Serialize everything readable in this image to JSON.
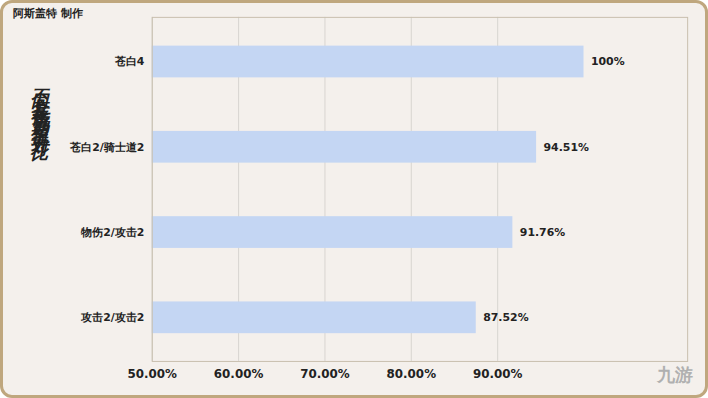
{
  "chart_data": {
    "type": "bar",
    "orientation": "horizontal",
    "title": "不同套装伤害期望提升对比",
    "subtitle": "阿斯盖特 制作",
    "caption": "九游",
    "categories": [
      "苍白4",
      "苍白2/骑士道2",
      "物伤2/攻击2",
      "攻击2/攻击2"
    ],
    "values": [
      100,
      94.51,
      91.76,
      87.52
    ],
    "value_labels": [
      "100%",
      "94.51%",
      "91.76%",
      "87.52%"
    ],
    "data_labels": true,
    "color": "#c4d6f3",
    "xlim": [
      50,
      112
    ],
    "xticks": [
      {
        "value": 50,
        "label": "50.00%"
      },
      {
        "value": 60,
        "label": "60.00%"
      },
      {
        "value": 70,
        "label": "70.00%"
      },
      {
        "value": 80,
        "label": "80.00%"
      },
      {
        "value": 90,
        "label": "90.00%"
      }
    ],
    "grid": true
  }
}
